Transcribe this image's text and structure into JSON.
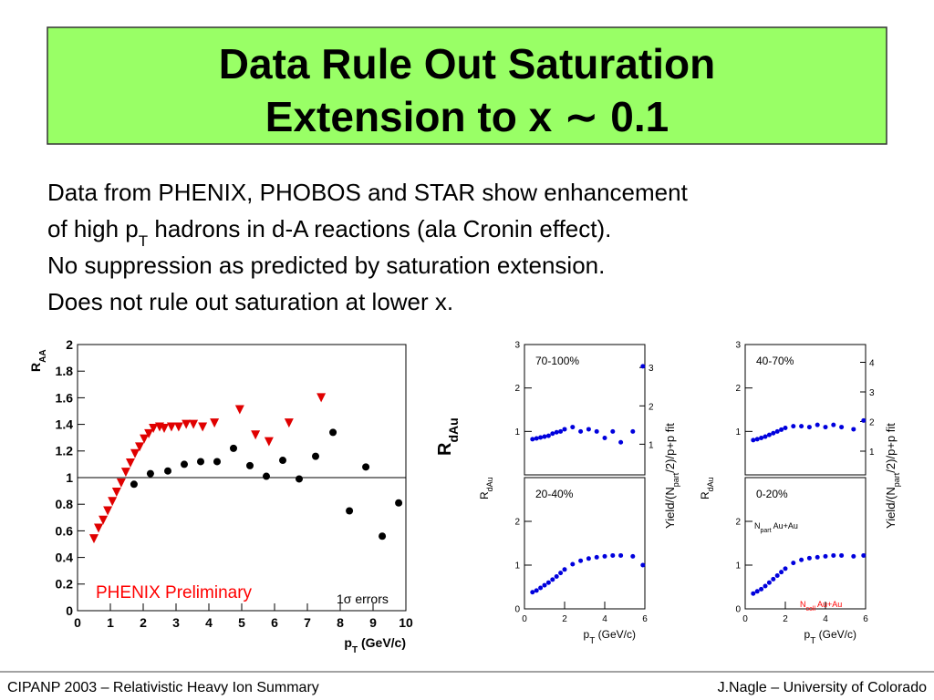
{
  "title": [
    "Data Rule Out Saturation",
    "Extension to x ∼ 0.1"
  ],
  "body": [
    {
      "text": "Data from PHENIX, PHOBOS and STAR show enhancement"
    },
    {
      "text": "of high p",
      "sub": "T",
      "rest": " hadrons in d-A reactions (ala Cronin effect)."
    },
    {
      "text": "No suppression as predicted by saturation extension."
    },
    {
      "text": "Does not rule out saturation at lower x."
    }
  ],
  "big_ylabel": {
    "text": "R",
    "sub": "dAu"
  },
  "footer": {
    "left": "CIPANP 2003 – Relativistic Heavy Ion Summary",
    "right": "J.Nagle – University of Colorado"
  },
  "chart_data": [
    {
      "type": "scatter",
      "ylabel": {
        "text": "R",
        "sub": "AA"
      },
      "xlabel": {
        "text": "p",
        "sub": "T",
        "rest": " (GeV/c)"
      },
      "annotations": [
        "PHENIX Preliminary",
        "1σ errors"
      ],
      "xlim": [
        0,
        10
      ],
      "ylim": [
        0,
        2
      ],
      "xticks": [
        0,
        1,
        2,
        3,
        4,
        5,
        6,
        7,
        8,
        9,
        10
      ],
      "yticks": [
        0,
        0.2,
        0.4,
        0.6,
        0.8,
        1,
        1.2,
        1.4,
        1.6,
        1.8,
        2
      ],
      "series": [
        {
          "color": "#000000",
          "marker": "circle",
          "x": [
            1.72,
            2.22,
            2.75,
            3.25,
            3.75,
            4.25,
            4.75,
            5.25,
            5.75,
            6.25,
            6.75,
            7.25,
            7.78,
            8.28,
            8.78,
            9.28,
            9.78
          ],
          "values": [
            0.95,
            1.03,
            1.05,
            1.1,
            1.12,
            1.12,
            1.22,
            1.09,
            1.01,
            1.13,
            0.99,
            1.16,
            1.34,
            0.75,
            1.08,
            0.56,
            0.81
          ]
        },
        {
          "color": "#e00000",
          "marker": "triangle",
          "x": [
            0.5,
            0.64,
            0.78,
            0.92,
            1.06,
            1.19,
            1.33,
            1.47,
            1.61,
            1.75,
            1.89,
            2.03,
            2.17,
            2.31,
            2.5,
            2.64,
            2.86,
            3.08,
            3.31,
            3.53,
            3.81,
            4.17,
            4.94,
            5.42,
            5.83,
            6.44,
            7.42
          ],
          "values": [
            0.54,
            0.62,
            0.68,
            0.75,
            0.82,
            0.89,
            0.96,
            1.04,
            1.11,
            1.18,
            1.23,
            1.29,
            1.33,
            1.37,
            1.38,
            1.37,
            1.38,
            1.38,
            1.4,
            1.4,
            1.38,
            1.41,
            1.51,
            1.32,
            1.27,
            1.41,
            1.6
          ]
        }
      ]
    },
    {
      "type": "scatter",
      "title": "70-100%",
      "color": "#0000dd",
      "xlim": [
        0,
        6
      ],
      "ylim": [
        0,
        3
      ],
      "yticks": [
        1,
        2,
        3
      ],
      "y2lim": [
        0.2,
        3.6
      ],
      "y2ticks": [
        1,
        2,
        3
      ],
      "ylabel": {
        "text": "R",
        "sub": "dAu"
      },
      "y2label": {
        "text": "Yield/(N",
        "sub": "part",
        "rest": "/2)/p+p fit"
      },
      "x": [
        0.4,
        0.6,
        0.8,
        1.0,
        1.2,
        1.4,
        1.6,
        1.8,
        2.0,
        2.4,
        2.8,
        3.2,
        3.6,
        4.0,
        4.4,
        4.8,
        5.4,
        5.9
      ],
      "values": [
        0.82,
        0.84,
        0.86,
        0.88,
        0.9,
        0.95,
        0.98,
        1.0,
        1.05,
        1.1,
        1.0,
        1.05,
        1.0,
        0.85,
        1.0,
        0.75,
        1.0,
        2.5
      ]
    },
    {
      "type": "scatter",
      "title": "40-70%",
      "color": "#0000dd",
      "xlim": [
        0,
        6
      ],
      "ylim": [
        0,
        3
      ],
      "yticks": [
        1,
        2,
        3
      ],
      "y2lim": [
        0.2,
        4.6
      ],
      "y2ticks": [
        1,
        2,
        3,
        4
      ],
      "ylabel": {
        "text": "R",
        "sub": "dAu"
      },
      "y2label": {
        "text": "Yield/(N",
        "sub": "part",
        "rest": "/2)/p+p fit"
      },
      "x": [
        0.4,
        0.6,
        0.8,
        1.0,
        1.2,
        1.4,
        1.6,
        1.8,
        2.0,
        2.4,
        2.8,
        3.2,
        3.6,
        4.0,
        4.4,
        4.8,
        5.4,
        5.9
      ],
      "values": [
        0.8,
        0.82,
        0.85,
        0.88,
        0.92,
        0.96,
        1.0,
        1.04,
        1.08,
        1.12,
        1.12,
        1.1,
        1.15,
        1.1,
        1.15,
        1.1,
        1.05,
        1.25
      ]
    },
    {
      "type": "scatter",
      "title": "20-40%",
      "color": "#0000dd",
      "xlim": [
        0,
        6
      ],
      "ylim": [
        0,
        3
      ],
      "xticks": [
        0,
        2,
        4,
        6
      ],
      "yticks": [
        0,
        1,
        2
      ],
      "xlabel": {
        "text": "p",
        "sub": "T",
        "rest": " (GeV/c)"
      },
      "x": [
        0.4,
        0.6,
        0.8,
        1.0,
        1.2,
        1.4,
        1.6,
        1.8,
        2.0,
        2.4,
        2.8,
        3.2,
        3.6,
        4.0,
        4.4,
        4.8,
        5.4,
        5.9
      ],
      "values": [
        0.38,
        0.42,
        0.48,
        0.54,
        0.6,
        0.67,
        0.74,
        0.82,
        0.9,
        1.02,
        1.1,
        1.15,
        1.18,
        1.2,
        1.22,
        1.22,
        1.2,
        1.0
      ]
    },
    {
      "type": "scatter",
      "title": "0-20%",
      "color": "#0000dd",
      "xlim": [
        0,
        6
      ],
      "ylim": [
        0,
        3
      ],
      "xticks": [
        0,
        2,
        4,
        6
      ],
      "yticks": [
        0,
        1,
        2
      ],
      "xlabel": {
        "text": "p",
        "sub": "T",
        "rest": " (GeV/c)"
      },
      "annotations": [
        {
          "text": "N",
          "sub": "part",
          "rest": " Au+Au"
        },
        {
          "text": "N",
          "sub": "coll",
          "rest": " Au+Au"
        }
      ],
      "x": [
        0.4,
        0.6,
        0.8,
        1.0,
        1.2,
        1.4,
        1.6,
        1.8,
        2.0,
        2.4,
        2.8,
        3.2,
        3.6,
        4.0,
        4.4,
        4.8,
        5.4,
        5.9
      ],
      "values": [
        0.35,
        0.4,
        0.45,
        0.52,
        0.6,
        0.68,
        0.76,
        0.84,
        0.92,
        1.05,
        1.12,
        1.16,
        1.18,
        1.2,
        1.22,
        1.22,
        1.2,
        1.22
      ]
    }
  ]
}
